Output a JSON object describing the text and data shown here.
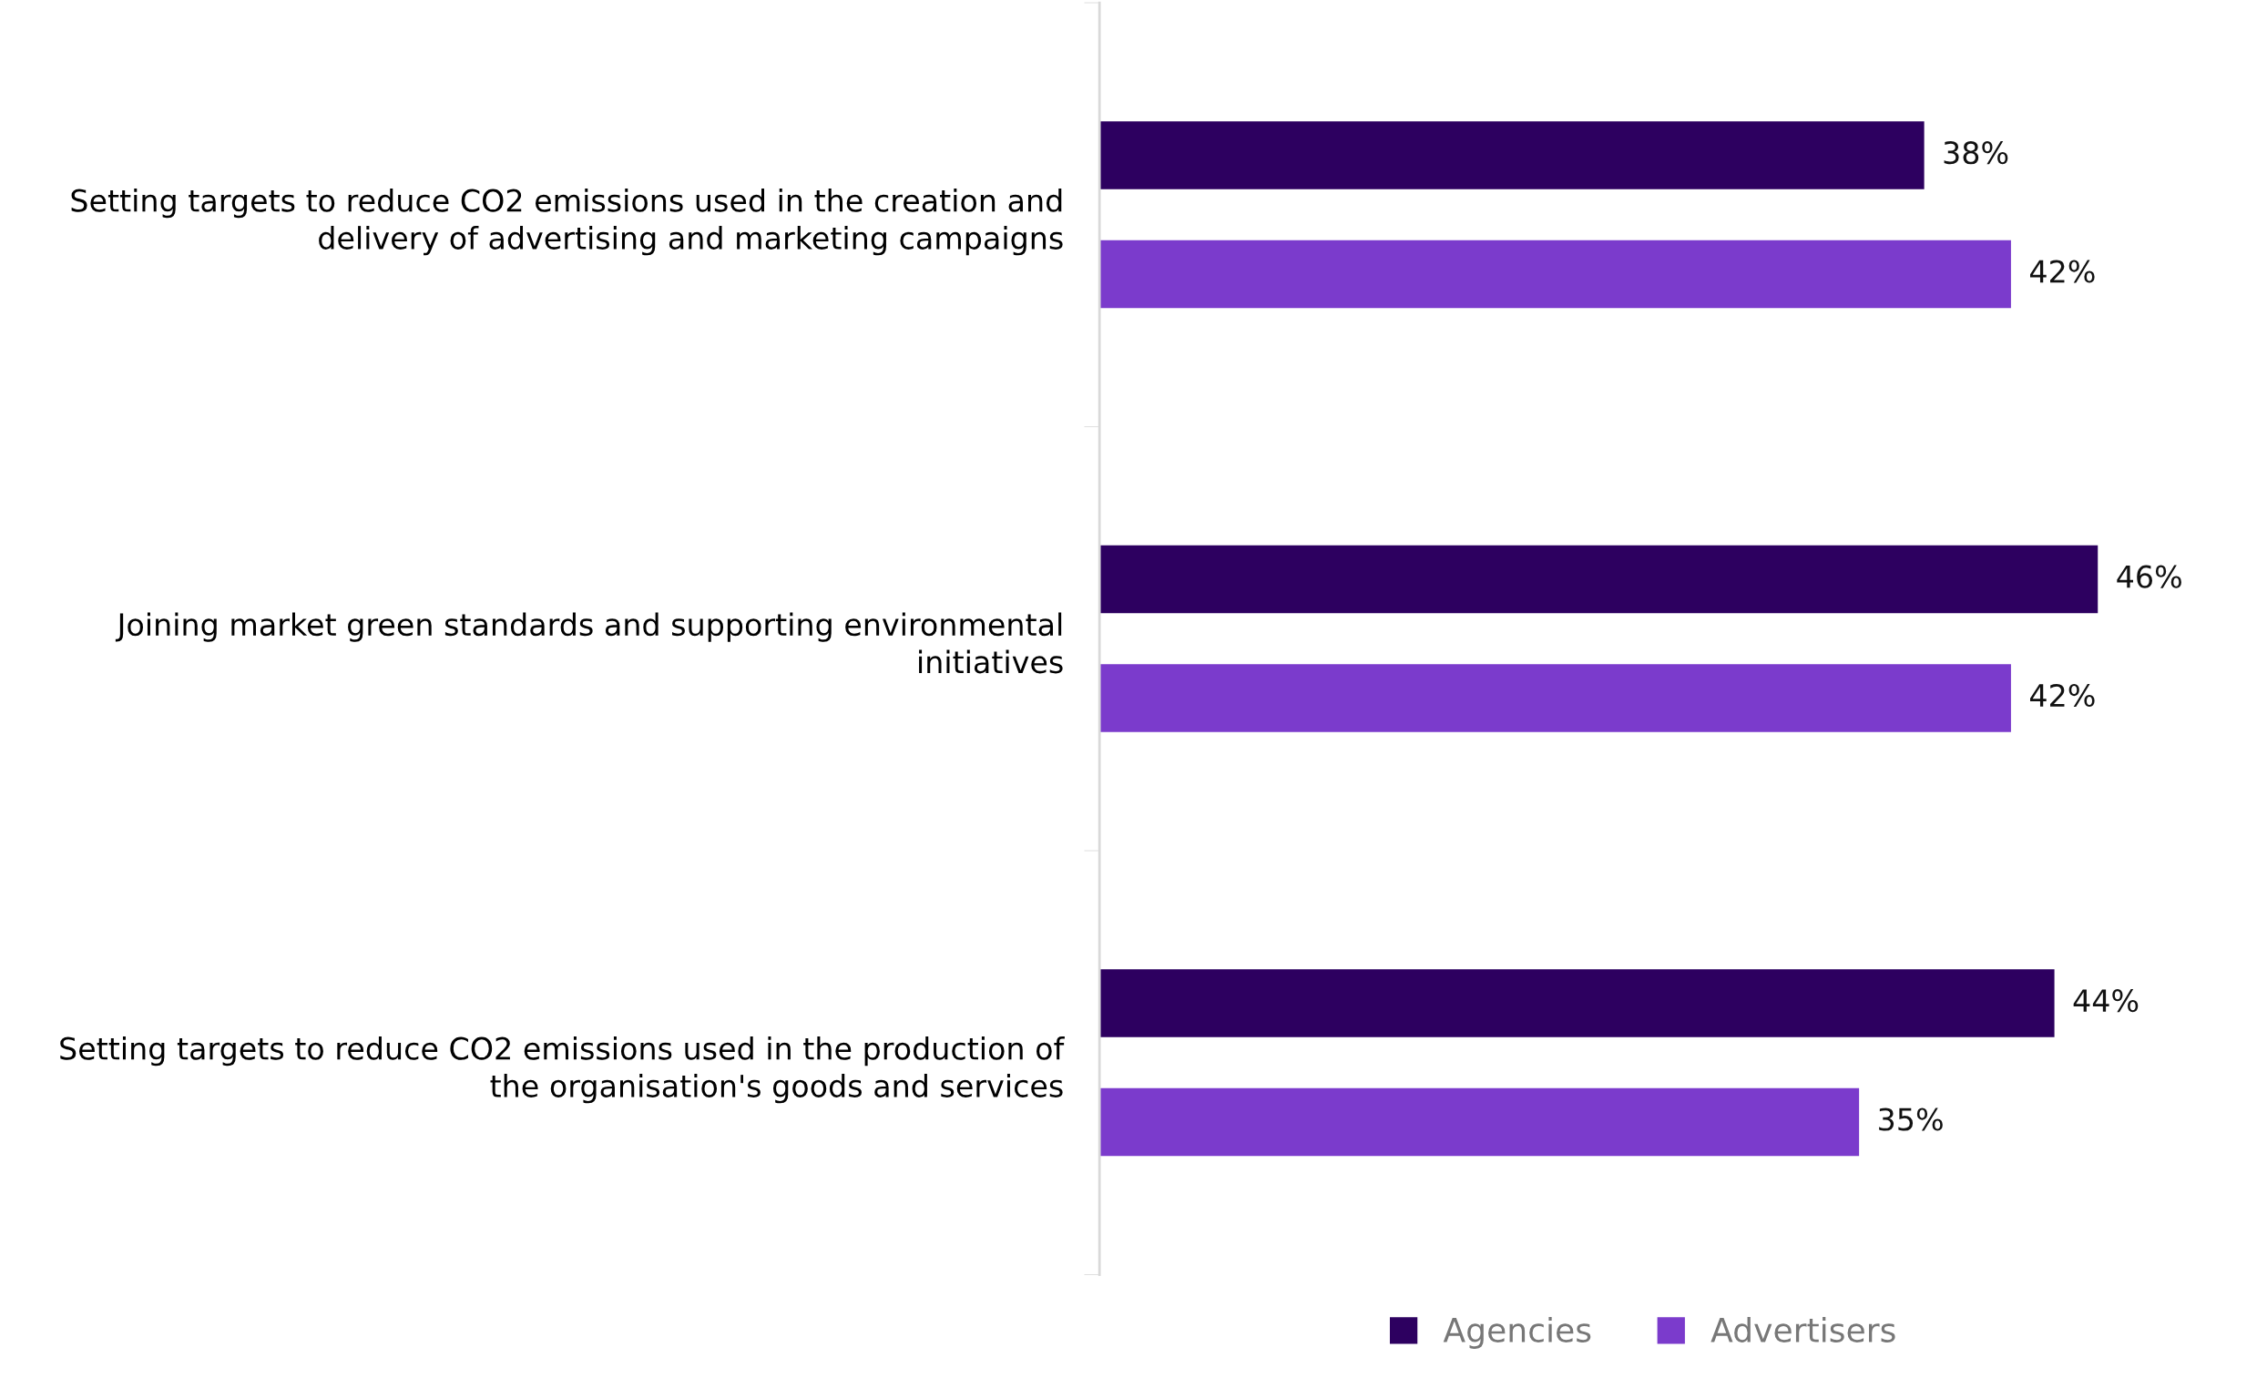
{
  "chart_data": {
    "type": "bar",
    "orientation": "horizontal",
    "categories": [
      "Setting targets to reduce CO2 emissions used in the creation and delivery of advertising and marketing campaigns",
      "Joining market green standards and supporting environmental initiatives",
      "Setting targets to reduce CO2 emissions used in the production of the organisation's goods and services"
    ],
    "series": [
      {
        "name": "Agencies",
        "color": "#2d0060",
        "values": [
          38,
          46,
          44
        ],
        "value_labels": [
          "38%",
          "46%",
          "44%"
        ]
      },
      {
        "name": "Advertisers",
        "color": "#7b3bcc",
        "values": [
          42,
          42,
          35
        ],
        "value_labels": [
          "42%",
          "42%",
          "35%"
        ]
      }
    ],
    "legend": "bottom",
    "grid": false
  }
}
